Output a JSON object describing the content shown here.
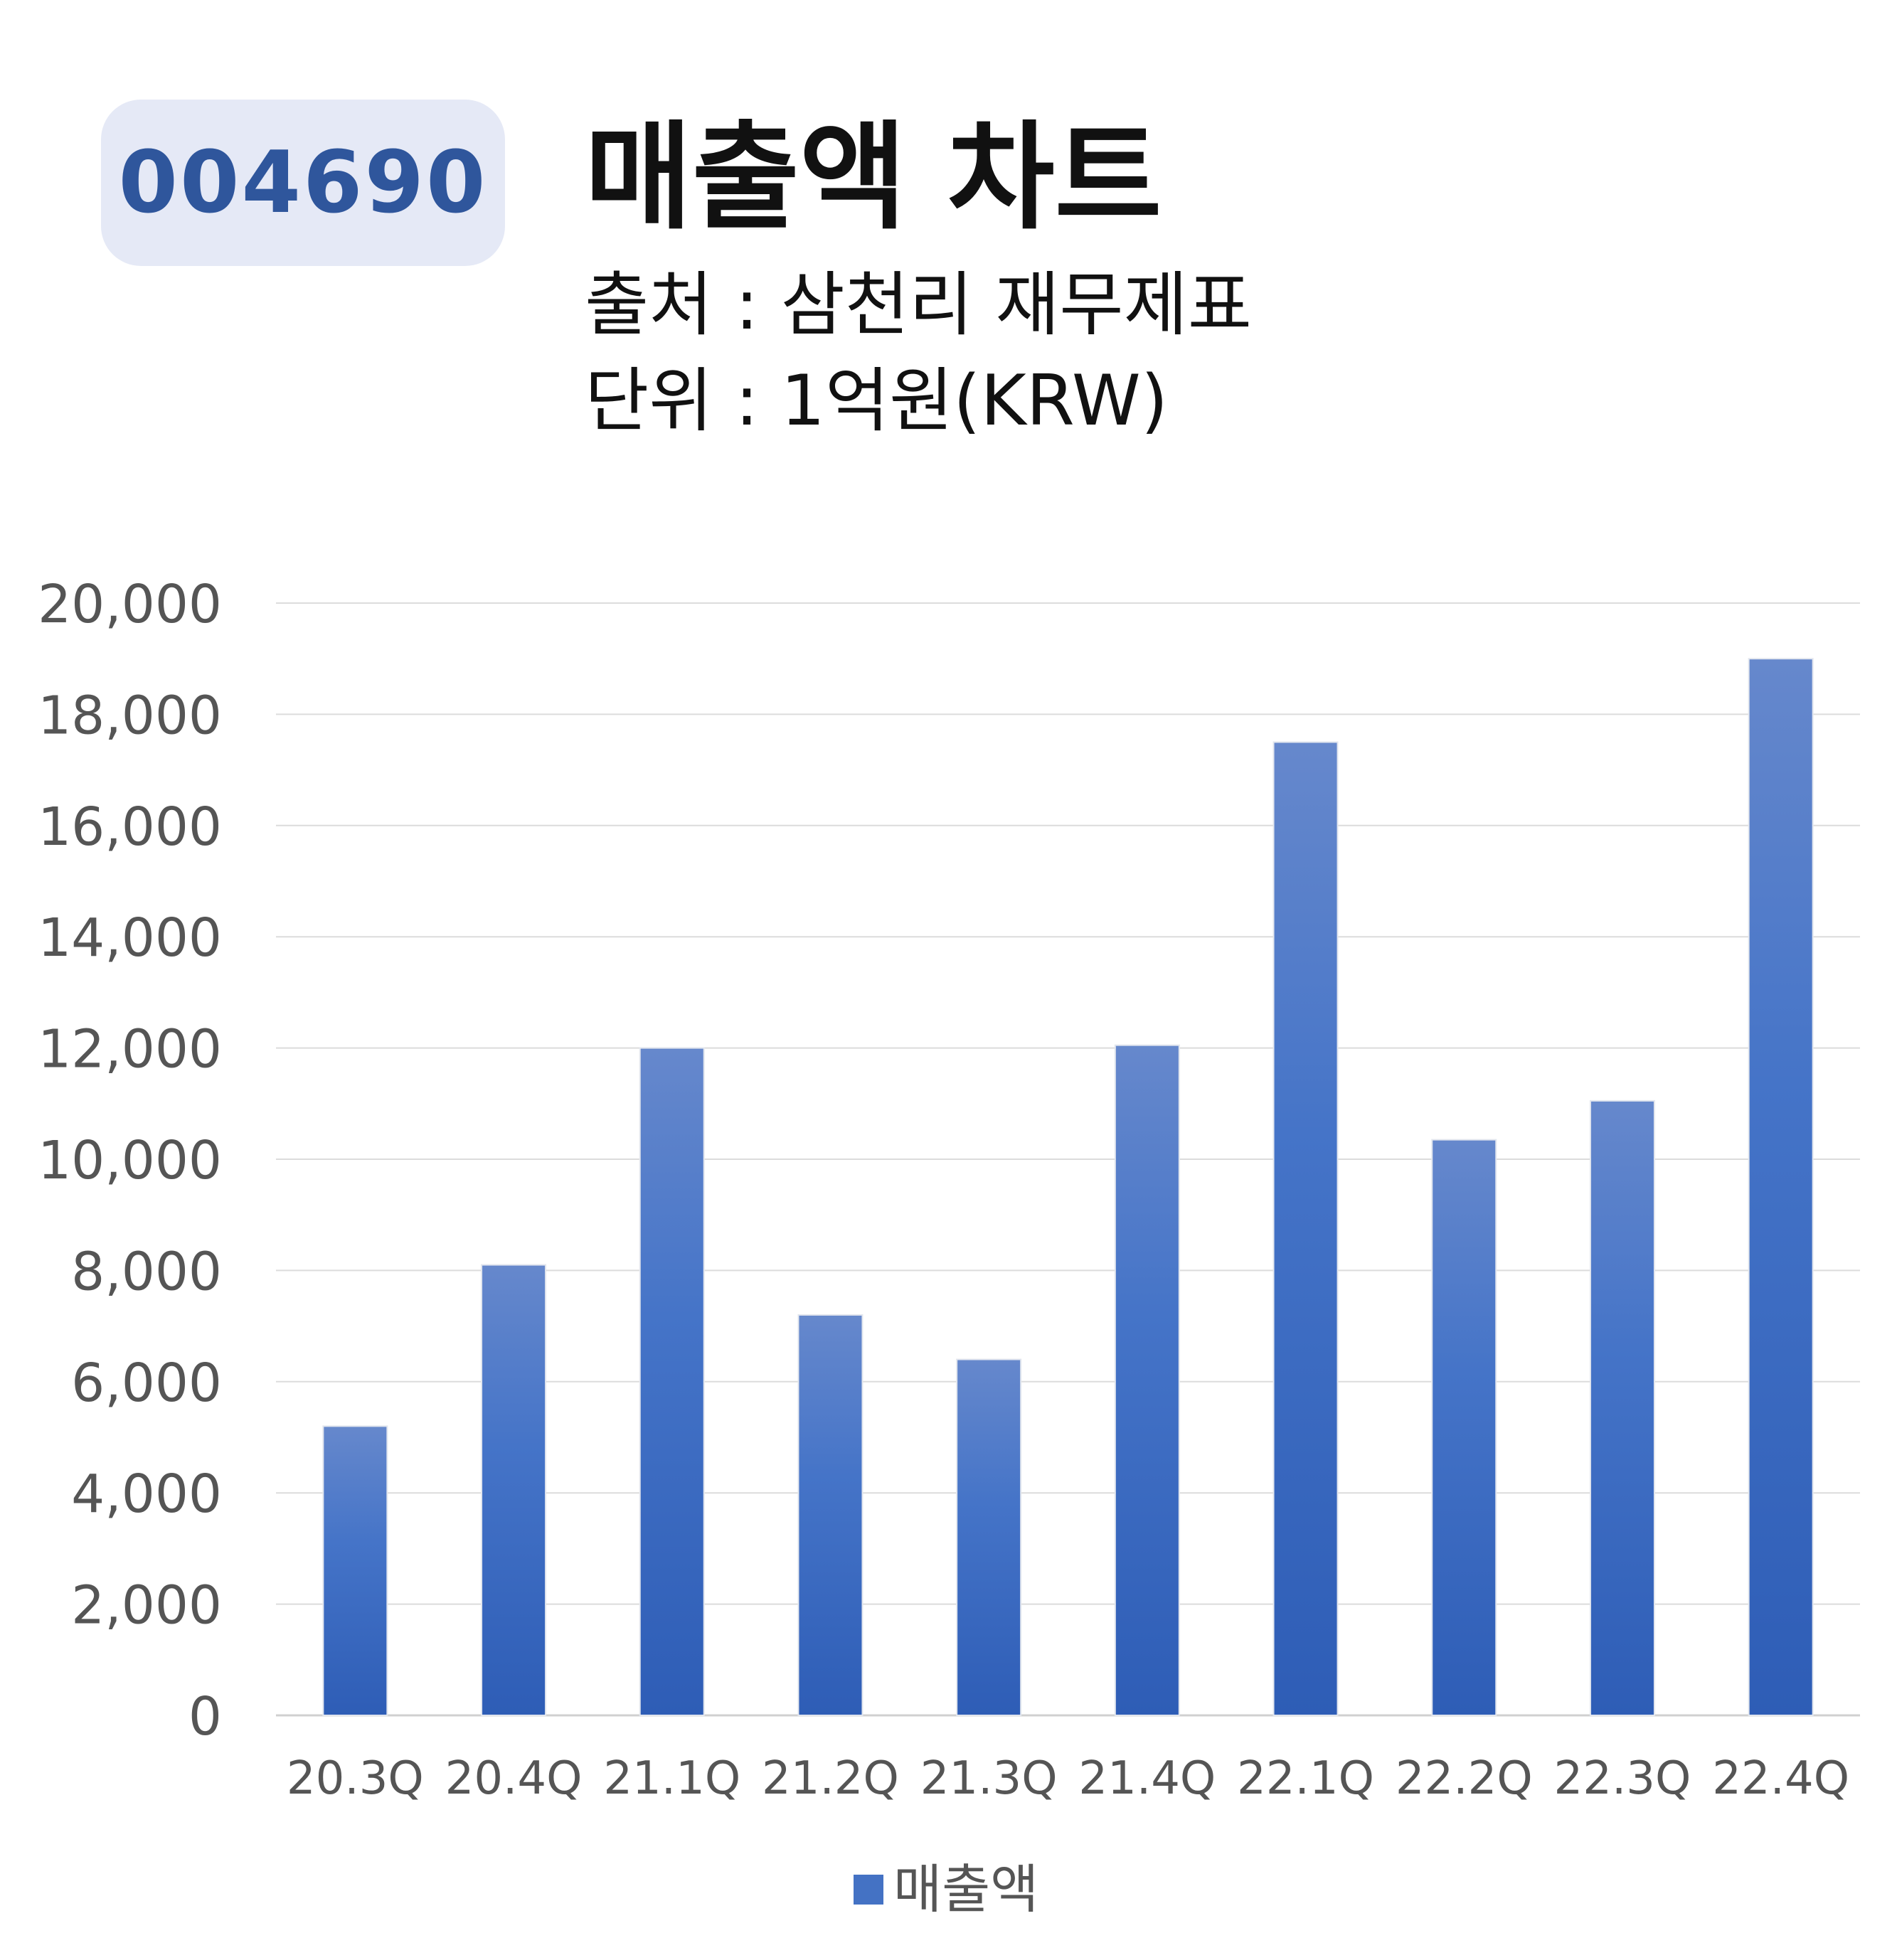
{
  "badge": {
    "code": "004690"
  },
  "header": {
    "title": "매출액 차트",
    "source": "출처 : 삼천리 재무제표",
    "unit": "단위 : 1억원(KRW)"
  },
  "chart_data": {
    "type": "bar",
    "categories": [
      "20.3Q",
      "20.4Q",
      "21.1Q",
      "21.2Q",
      "21.3Q",
      "21.4Q",
      "22.1Q",
      "22.2Q",
      "22.3Q",
      "22.4Q"
    ],
    "series": [
      {
        "name": "매출액",
        "values": [
          5200,
          8100,
          12000,
          7200,
          6400,
          12050,
          17500,
          10350,
          11050,
          19000
        ]
      }
    ],
    "yticks": [
      "0",
      "2,000",
      "4,000",
      "6,000",
      "8,000",
      "10,000",
      "12,000",
      "14,000",
      "16,000",
      "18,000",
      "20,000"
    ],
    "ylim": [
      0,
      20000
    ],
    "grid": true,
    "legend_position": "bottom",
    "bar_color": "#4472c4"
  }
}
